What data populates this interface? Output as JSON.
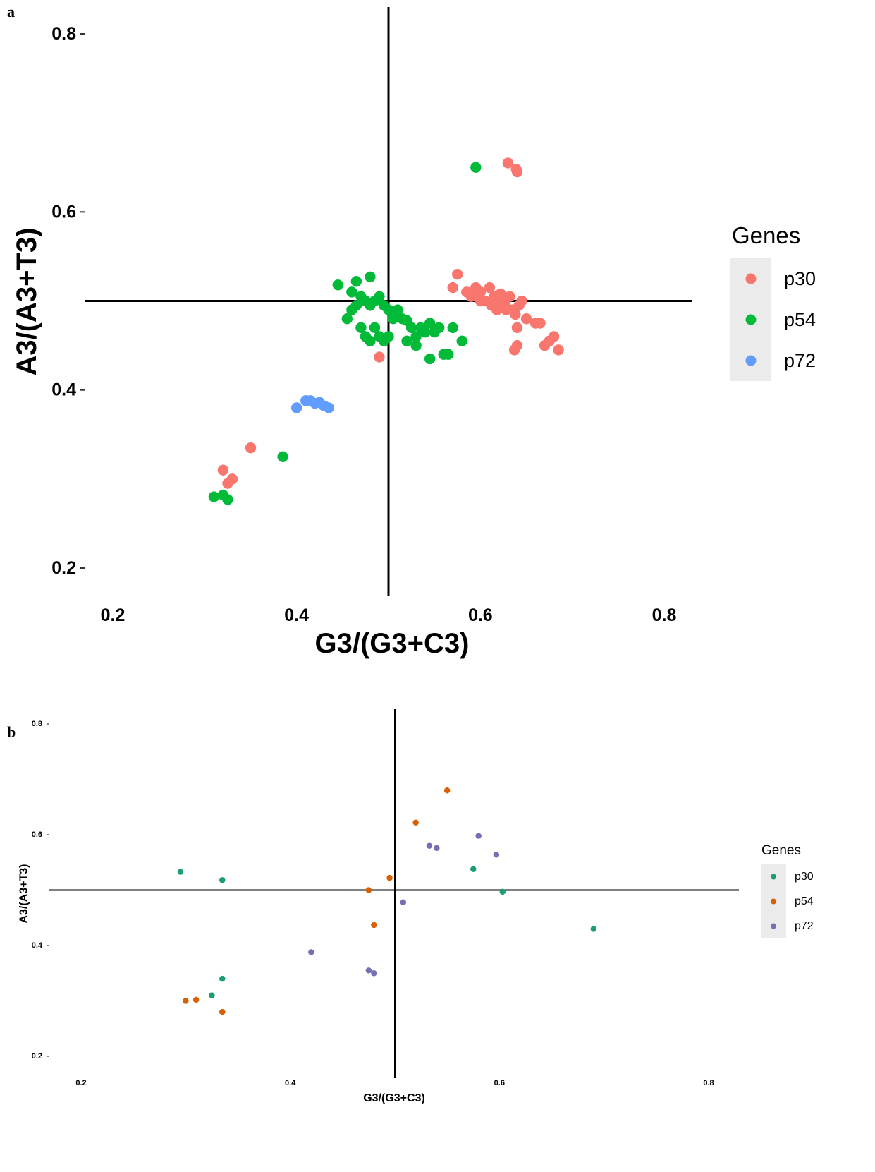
{
  "panels": {
    "a": "a",
    "b": "b"
  },
  "chart_data": [
    {
      "type": "scatter",
      "panel": "a",
      "xlabel": "G3/(G3+C3)",
      "ylabel": "A3/(A3+T3)",
      "xlim": [
        0.17,
        0.83
      ],
      "ylim": [
        0.17,
        0.83
      ],
      "xticks": [
        "0.2",
        "0.4",
        "0.6",
        "0.8"
      ],
      "yticks": [
        "0.2",
        "0.4",
        "0.6",
        "0.8"
      ],
      "reference_lines": {
        "x": 0.5,
        "y": 0.5
      },
      "grid": false,
      "legend": {
        "title": "Genes",
        "position": "right"
      },
      "series": [
        {
          "name": "p30",
          "color": "#F8766D",
          "points": [
            [
              0.63,
              0.655
            ],
            [
              0.639,
              0.648
            ],
            [
              0.64,
              0.645
            ],
            [
              0.575,
              0.53
            ],
            [
              0.57,
              0.515
            ],
            [
              0.585,
              0.51
            ],
            [
              0.59,
              0.505
            ],
            [
              0.595,
              0.515
            ],
            [
              0.6,
              0.51
            ],
            [
              0.605,
              0.5
            ],
            [
              0.61,
              0.515
            ],
            [
              0.615,
              0.505
            ],
            [
              0.62,
              0.5
            ],
            [
              0.625,
              0.495
            ],
            [
              0.628,
              0.49
            ],
            [
              0.632,
              0.505
            ],
            [
              0.635,
              0.49
            ],
            [
              0.638,
              0.485
            ],
            [
              0.642,
              0.495
            ],
            [
              0.645,
              0.5
            ],
            [
              0.65,
              0.48
            ],
            [
              0.66,
              0.475
            ],
            [
              0.665,
              0.475
            ],
            [
              0.67,
              0.45
            ],
            [
              0.675,
              0.455
            ],
            [
              0.68,
              0.46
            ],
            [
              0.685,
              0.445
            ],
            [
              0.637,
              0.445
            ],
            [
              0.64,
              0.45
            ],
            [
              0.64,
              0.47
            ],
            [
              0.6,
              0.5
            ],
            [
              0.612,
              0.495
            ],
            [
              0.618,
              0.49
            ],
            [
              0.622,
              0.508
            ],
            [
              0.627,
              0.498
            ],
            [
              0.49,
              0.437
            ],
            [
              0.35,
              0.335
            ],
            [
              0.32,
              0.31
            ],
            [
              0.325,
              0.295
            ],
            [
              0.33,
              0.3
            ]
          ]
        },
        {
          "name": "p54",
          "color": "#00BA38",
          "points": [
            [
              0.595,
              0.65
            ],
            [
              0.445,
              0.518
            ],
            [
              0.465,
              0.522
            ],
            [
              0.48,
              0.527
            ],
            [
              0.46,
              0.51
            ],
            [
              0.47,
              0.505
            ],
            [
              0.475,
              0.5
            ],
            [
              0.48,
              0.495
            ],
            [
              0.485,
              0.5
            ],
            [
              0.49,
              0.505
            ],
            [
              0.495,
              0.495
            ],
            [
              0.5,
              0.49
            ],
            [
              0.505,
              0.48
            ],
            [
              0.51,
              0.49
            ],
            [
              0.515,
              0.48
            ],
            [
              0.52,
              0.478
            ],
            [
              0.525,
              0.47
            ],
            [
              0.53,
              0.46
            ],
            [
              0.535,
              0.47
            ],
            [
              0.54,
              0.465
            ],
            [
              0.545,
              0.475
            ],
            [
              0.55,
              0.465
            ],
            [
              0.555,
              0.47
            ],
            [
              0.56,
              0.44
            ],
            [
              0.565,
              0.44
            ],
            [
              0.57,
              0.47
            ],
            [
              0.58,
              0.455
            ],
            [
              0.485,
              0.47
            ],
            [
              0.49,
              0.46
            ],
            [
              0.495,
              0.455
            ],
            [
              0.5,
              0.46
            ],
            [
              0.47,
              0.47
            ],
            [
              0.475,
              0.46
            ],
            [
              0.48,
              0.455
            ],
            [
              0.455,
              0.48
            ],
            [
              0.46,
              0.49
            ],
            [
              0.465,
              0.495
            ],
            [
              0.545,
              0.435
            ],
            [
              0.52,
              0.455
            ],
            [
              0.53,
              0.45
            ],
            [
              0.385,
              0.325
            ],
            [
              0.31,
              0.28
            ],
            [
              0.32,
              0.282
            ],
            [
              0.325,
              0.277
            ]
          ]
        },
        {
          "name": "p72",
          "color": "#619CFF",
          "points": [
            [
              0.4,
              0.38
            ],
            [
              0.41,
              0.388
            ],
            [
              0.415,
              0.388
            ],
            [
              0.42,
              0.385
            ],
            [
              0.425,
              0.386
            ],
            [
              0.43,
              0.382
            ],
            [
              0.435,
              0.38
            ]
          ]
        }
      ]
    },
    {
      "type": "scatter",
      "panel": "b",
      "xlabel": "G3/(G3+C3)",
      "ylabel": "A3/(A3+T3)",
      "xlim": [
        0.17,
        0.83
      ],
      "ylim": [
        0.17,
        0.83
      ],
      "xticks": [
        "0.2",
        "0.4",
        "0.6",
        "0.8"
      ],
      "yticks": [
        "0.2",
        "0.4",
        "0.6",
        "0.8"
      ],
      "reference_lines": {
        "x": 0.5,
        "y": 0.5
      },
      "grid": false,
      "legend": {
        "title": "Genes",
        "position": "right"
      },
      "series": [
        {
          "name": "p30",
          "color": "#1B9E77",
          "points": [
            [
              0.295,
              0.533
            ],
            [
              0.335,
              0.518
            ],
            [
              0.575,
              0.538
            ],
            [
              0.603,
              0.497
            ],
            [
              0.69,
              0.43
            ],
            [
              0.335,
              0.34
            ],
            [
              0.325,
              0.31
            ]
          ]
        },
        {
          "name": "p54",
          "color": "#D95F02",
          "points": [
            [
              0.55,
              0.68
            ],
            [
              0.52,
              0.622
            ],
            [
              0.495,
              0.522
            ],
            [
              0.475,
              0.5
            ],
            [
              0.48,
              0.437
            ],
            [
              0.3,
              0.3
            ],
            [
              0.31,
              0.302
            ],
            [
              0.335,
              0.28
            ]
          ]
        },
        {
          "name": "p72",
          "color": "#7570B3",
          "points": [
            [
              0.533,
              0.58
            ],
            [
              0.54,
              0.576
            ],
            [
              0.58,
              0.598
            ],
            [
              0.597,
              0.564
            ],
            [
              0.508,
              0.478
            ],
            [
              0.42,
              0.388
            ],
            [
              0.475,
              0.355
            ],
            [
              0.48,
              0.35
            ]
          ]
        }
      ]
    }
  ]
}
